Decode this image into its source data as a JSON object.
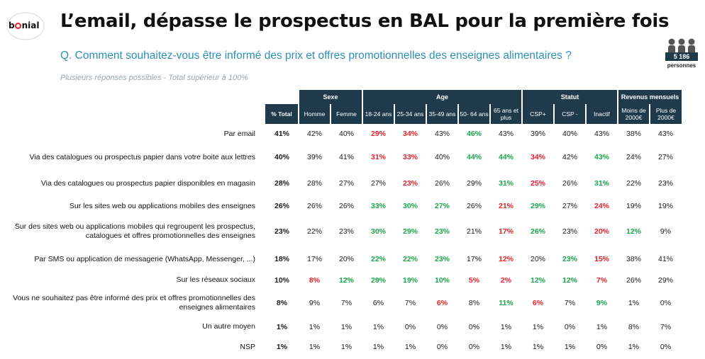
{
  "brand": {
    "logo_text": "bonial",
    "accent": "#e4202a"
  },
  "title": "L’email, dépasse le prospectus en BAL pour la première fois",
  "question": "Q. Comment souhaitez-vous être informé des prix et offres promotionnelles des enseignes alimentaires ?",
  "note": "Plusieurs réponses possibles - Total supérieur à 100%",
  "sample": {
    "count": "5 186",
    "label": "personnes",
    "icon": "people-icon"
  },
  "colors": {
    "header_bg": "#1f3a4b",
    "question": "#2e8fb5",
    "above": "#19a64b",
    "below": "#e4202a"
  },
  "table": {
    "groups": [
      "Sexe",
      "Age",
      "Statut",
      "Revenus  mensuels"
    ],
    "total_header": "% Total",
    "columns": [
      "Homme",
      "Femme",
      "18-24 ans",
      "25-34 ans",
      "35-49 ans",
      "50- 64 ans",
      "65 ans et plus",
      "CSP+",
      "CSP -",
      "Inactif",
      "Moins de 2000€",
      "Plus de 2000€"
    ],
    "rows": [
      {
        "label": "Par email",
        "total": "41%",
        "values": [
          "42%",
          "40%",
          "29%",
          "34%",
          "43%",
          "46%",
          "43%",
          "39%",
          "40%",
          "43%",
          "38%",
          "43%"
        ],
        "colors": [
          "",
          "",
          "r",
          "r",
          "",
          "g",
          "",
          "",
          "",
          "",
          "",
          ""
        ]
      },
      {
        "label": "Via des catalogues ou prospectus papier dans votre boite aux lettres",
        "total": "40%",
        "values": [
          "39%",
          "41%",
          "31%",
          "33%",
          "40%",
          "44%",
          "44%",
          "34%",
          "42%",
          "43%",
          "24%",
          "27%"
        ],
        "colors": [
          "",
          "",
          "r",
          "r",
          "",
          "g",
          "g",
          "r",
          "",
          "g",
          "",
          ""
        ]
      },
      {
        "label": "Via des catalogues ou prospectus papier disponibles en magasin",
        "total": "28%",
        "values": [
          "28%",
          "27%",
          "27%",
          "23%",
          "26%",
          "29%",
          "31%",
          "25%",
          "26%",
          "31%",
          "22%",
          "23%"
        ],
        "colors": [
          "",
          "",
          "",
          "r",
          "",
          "",
          "g",
          "r",
          "",
          "g",
          "",
          ""
        ]
      },
      {
        "label": "Sur les sites web ou applications mobiles des enseignes",
        "total": "26%",
        "values": [
          "26%",
          "26%",
          "33%",
          "30%",
          "27%",
          "26%",
          "21%",
          "29%",
          "27%",
          "24%",
          "19%",
          "19%"
        ],
        "colors": [
          "",
          "",
          "g",
          "g",
          "g",
          "",
          "r",
          "g",
          "",
          "r",
          "",
          ""
        ]
      },
      {
        "label": "Sur des sites web ou applications mobiles qui regroupent les prospectus, catalogues et offres promotionnelles des enseignes",
        "total": "23%",
        "values": [
          "22%",
          "23%",
          "30%",
          "29%",
          "23%",
          "21%",
          "17%",
          "26%",
          "23%",
          "20%",
          "12%",
          "9%"
        ],
        "colors": [
          "",
          "",
          "g",
          "g",
          "g",
          "",
          "r",
          "g",
          "",
          "r",
          "g",
          ""
        ]
      },
      {
        "label": "Par SMS ou application de messagerie (WhatsApp, Messenger, ...)",
        "total": "18%",
        "values": [
          "17%",
          "20%",
          "22%",
          "22%",
          "23%",
          "17%",
          "12%",
          "20%",
          "23%",
          "15%",
          "38%",
          "41%"
        ],
        "colors": [
          "",
          "",
          "g",
          "g",
          "g",
          "",
          "r",
          "",
          "g",
          "r",
          "",
          ""
        ]
      },
      {
        "label": "Sur les réseaux sociaux",
        "total": "10%",
        "values": [
          "8%",
          "12%",
          "29%",
          "19%",
          "10%",
          "5%",
          "2%",
          "12%",
          "12%",
          "7%",
          "26%",
          "29%"
        ],
        "colors": [
          "r",
          "g",
          "g",
          "g",
          "g",
          "r",
          "r",
          "g",
          "g",
          "r",
          "",
          ""
        ]
      },
      {
        "label": "Vous ne souhaitez pas être informé des prix et offres promotionnelles des enseignes alimentaires",
        "total": "8%",
        "values": [
          "9%",
          "7%",
          "6%",
          "7%",
          "6%",
          "8%",
          "11%",
          "6%",
          "7%",
          "9%",
          "1%",
          "0%"
        ],
        "colors": [
          "",
          "",
          "",
          "",
          "r",
          "",
          "g",
          "r",
          "",
          "g",
          "",
          ""
        ]
      },
      {
        "label": "Un autre moyen",
        "total": "1%",
        "values": [
          "1%",
          "1%",
          "1%",
          "0%",
          "0%",
          "0%",
          "1%",
          "1%",
          "0%",
          "1%",
          "8%",
          "7%"
        ],
        "colors": [
          "",
          "",
          "",
          "",
          "",
          "",
          "",
          "",
          "",
          "",
          "",
          ""
        ]
      },
      {
        "label": "NSP",
        "total": "1%",
        "values": [
          "1%",
          "1%",
          "1%",
          "1%",
          "0%",
          "0%",
          "1%",
          "1%",
          "1%",
          "0%",
          "1%",
          "0%"
        ],
        "colors": [
          "",
          "",
          "",
          "",
          "",
          "",
          "",
          "",
          "",
          "",
          "",
          ""
        ]
      }
    ]
  }
}
